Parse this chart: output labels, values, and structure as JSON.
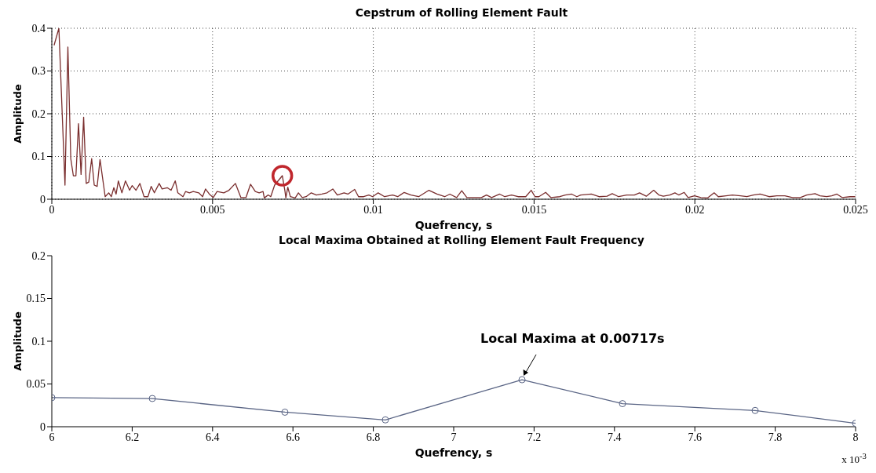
{
  "chart_data": [
    {
      "type": "line",
      "title": "Cepstrum of Rolling Element Fault",
      "xlabel": "Quefrency, s",
      "ylabel": "Amplitude",
      "xlim": [
        0,
        0.025
      ],
      "xticks": [
        0,
        0.005,
        0.01,
        0.015,
        0.02,
        0.025
      ],
      "ylim": [
        0,
        0.4
      ],
      "yticks": [
        0,
        0.1,
        0.2,
        0.3,
        0.4
      ],
      "grid": true,
      "marker": "none",
      "series": [
        {
          "color": "#7a2e2e",
          "x": [
            7e-05,
            0.00022,
            0.00041,
            0.0005,
            0.00059,
            0.00067,
            0.00075,
            0.00083,
            0.00091,
            0.00099,
            0.00107,
            0.00115,
            0.00124,
            0.00132,
            0.00141,
            0.0015,
            0.00166,
            0.00177,
            0.00185,
            0.00193,
            0.002,
            0.00207,
            0.00218,
            0.00229,
            0.00242,
            0.0025,
            0.00262,
            0.00274,
            0.00287,
            0.00299,
            0.00309,
            0.00319,
            0.00334,
            0.00343,
            0.00359,
            0.00371,
            0.00384,
            0.00392,
            0.00408,
            0.00416,
            0.00428,
            0.0044,
            0.00457,
            0.00469,
            0.00478,
            0.0049,
            0.00502,
            0.00514,
            0.00535,
            0.00551,
            0.00571,
            0.00588,
            0.00604,
            0.00618,
            0.00633,
            0.00645,
            0.00657,
            0.00661,
            0.00673,
            0.00681,
            0.00693,
            0.00717,
            0.00725,
            0.00728,
            0.00734,
            0.00742,
            0.00757,
            0.00767,
            0.00779,
            0.00791,
            0.00807,
            0.00823,
            0.0084,
            0.00856,
            0.00874,
            0.00888,
            0.00909,
            0.00921,
            0.00942,
            0.00954,
            0.0097,
            0.00986,
            0.00998,
            0.01015,
            0.01035,
            0.0106,
            0.01076,
            0.01096,
            0.01117,
            0.01141,
            0.01173,
            0.01198,
            0.01222,
            0.01238,
            0.01259,
            0.01275,
            0.01291,
            0.01336,
            0.01352,
            0.01368,
            0.01393,
            0.01409,
            0.0143,
            0.0145,
            0.01474,
            0.01491,
            0.01503,
            0.01515,
            0.01536,
            0.01552,
            0.0158,
            0.01597,
            0.01617,
            0.01633,
            0.01645,
            0.01678,
            0.01702,
            0.01727,
            0.01743,
            0.01763,
            0.01788,
            0.01812,
            0.01828,
            0.01849,
            0.01872,
            0.01888,
            0.01902,
            0.01922,
            0.01938,
            0.0195,
            0.01967,
            0.01979,
            0.01999,
            0.02019,
            0.0204,
            0.0206,
            0.02073,
            0.02097,
            0.02117,
            0.02142,
            0.02162,
            0.02182,
            0.02203,
            0.02231,
            0.02255,
            0.0228,
            0.02304,
            0.02328,
            0.02348,
            0.02374,
            0.02389,
            0.0241,
            0.02426,
            0.02442,
            0.02458,
            0.02483,
            0.02499
          ],
          "values": [
            0.36,
            0.4,
            0.033,
            0.356,
            0.095,
            0.055,
            0.055,
            0.177,
            0.058,
            0.192,
            0.037,
            0.04,
            0.095,
            0.033,
            0.03,
            0.093,
            0.006,
            0.015,
            0.006,
            0.027,
            0.012,
            0.043,
            0.015,
            0.043,
            0.021,
            0.032,
            0.021,
            0.037,
            0.006,
            0.006,
            0.03,
            0.015,
            0.037,
            0.024,
            0.027,
            0.021,
            0.043,
            0.015,
            0.006,
            0.018,
            0.015,
            0.018,
            0.015,
            0.006,
            0.024,
            0.012,
            0.004,
            0.018,
            0.015,
            0.021,
            0.037,
            0.004,
            0.004,
            0.035,
            0.018,
            0.015,
            0.018,
            0.003,
            0.01,
            0.006,
            0.033,
            0.055,
            0.02,
            0.003,
            0.028,
            0.006,
            0.003,
            0.015,
            0.004,
            0.006,
            0.015,
            0.01,
            0.012,
            0.015,
            0.024,
            0.01,
            0.015,
            0.012,
            0.023,
            0.006,
            0.006,
            0.01,
            0.006,
            0.015,
            0.006,
            0.01,
            0.006,
            0.016,
            0.01,
            0.006,
            0.021,
            0.012,
            0.006,
            0.012,
            0.004,
            0.02,
            0.004,
            0.004,
            0.01,
            0.004,
            0.012,
            0.006,
            0.01,
            0.006,
            0.006,
            0.021,
            0.006,
            0.006,
            0.016,
            0.004,
            0.006,
            0.01,
            0.012,
            0.006,
            0.01,
            0.012,
            0.006,
            0.007,
            0.013,
            0.006,
            0.01,
            0.01,
            0.015,
            0.007,
            0.021,
            0.01,
            0.007,
            0.01,
            0.015,
            0.01,
            0.016,
            0.004,
            0.008,
            0.004,
            0.003,
            0.015,
            0.006,
            0.008,
            0.01,
            0.008,
            0.006,
            0.01,
            0.012,
            0.006,
            0.008,
            0.008,
            0.004,
            0.004,
            0.01,
            0.013,
            0.008,
            0.006,
            0.008,
            0.012,
            0.004,
            0.006,
            0.006
          ]
        },
        {
          "type": "scatter",
          "color": "#c0272d",
          "marker": "circle",
          "x": [
            0.00717
          ],
          "values": [
            0.055
          ]
        }
      ]
    },
    {
      "type": "line",
      "title": "Local Maxima Obtained at Rolling Element Fault Frequency",
      "xlabel": "Quefrency, s",
      "ylabel": "Amplitude",
      "xlim": [
        6,
        8
      ],
      "xticks": [
        6,
        6.2,
        6.4,
        6.6,
        6.8,
        7,
        7.2,
        7.4,
        7.6,
        7.8,
        8
      ],
      "ylim": [
        0,
        0.2
      ],
      "yticks": [
        0,
        0.05,
        0.1,
        0.15,
        0.2
      ],
      "marker": "circle",
      "annotations": [
        {
          "text": "Local Maxima at 0.00717s",
          "x": 7.17,
          "y": 0.055
        },
        "x 10$^{-3}$"
      ],
      "series": [
        {
          "color": "#5a6585",
          "x": [
            6,
            6.25,
            6.58,
            6.83,
            7.17,
            7.42,
            7.75,
            8
          ],
          "values": [
            0.034,
            0.033,
            0.017,
            0.008,
            0.055,
            0.027,
            0.019,
            0.004
          ]
        }
      ]
    }
  ]
}
